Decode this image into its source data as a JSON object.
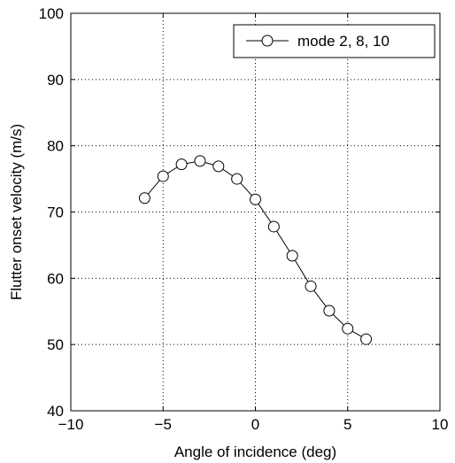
{
  "chart_data": {
    "type": "line",
    "title": "",
    "xlabel": "Angle of incidence (deg)",
    "ylabel": "Flutter onset velocity (m/s)",
    "xlim": [
      -10,
      10
    ],
    "ylim": [
      40,
      100
    ],
    "xticks": [
      -10,
      -5,
      0,
      5,
      10
    ],
    "xtick_labels": [
      "−10",
      "−5",
      "0",
      "5",
      "10"
    ],
    "yticks": [
      40,
      50,
      60,
      70,
      80,
      90,
      100
    ],
    "ytick_labels": [
      "40",
      "50",
      "60",
      "70",
      "80",
      "90",
      "100"
    ],
    "grid": true,
    "grid_style": "dotted",
    "legend_position": "top-right",
    "series": [
      {
        "name": "mode 2, 8, 10",
        "color": "#000000",
        "marker": "open-circle",
        "x": [
          -6,
          -5,
          -4,
          -3,
          -2,
          -1,
          0,
          1,
          2,
          3,
          4,
          5,
          6
        ],
        "y": [
          72.1,
          75.4,
          77.2,
          77.7,
          76.9,
          75.0,
          71.9,
          67.8,
          63.4,
          58.8,
          55.1,
          52.4,
          50.8
        ]
      }
    ]
  }
}
